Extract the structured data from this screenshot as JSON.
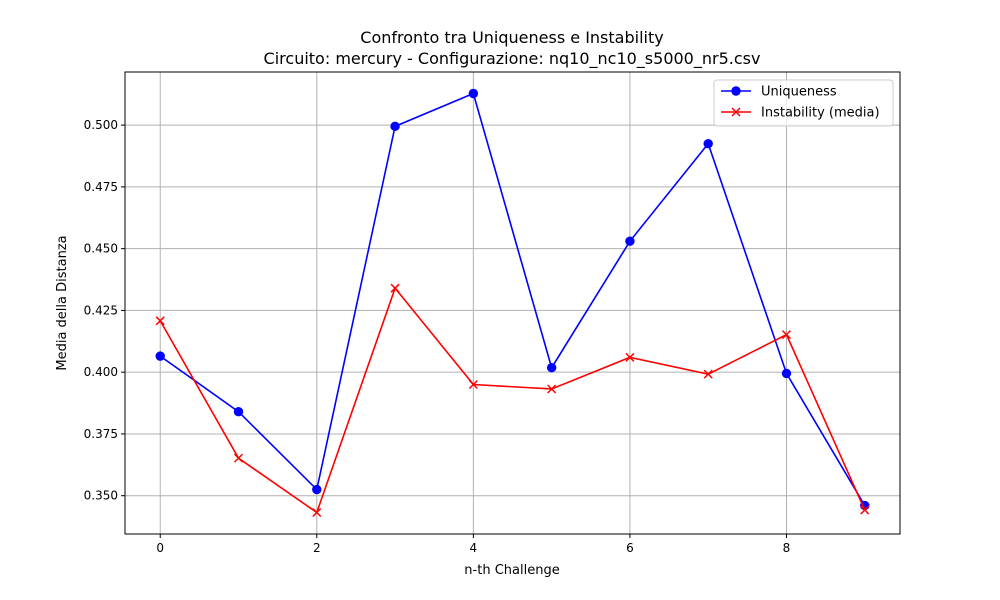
{
  "chart_data": {
    "type": "line",
    "title": "Confronto tra Uniqueness e Instability",
    "subtitle": "Circuito: mercury - Configurazione: nq10_nc10_s5000_nr5.csv",
    "xlabel": "n-th Challenge",
    "ylabel": "Media della Distanza",
    "x": [
      0,
      1,
      2,
      3,
      4,
      5,
      6,
      7,
      8,
      9
    ],
    "xlim": [
      -0.45,
      9.45
    ],
    "ylim": [
      0.3345,
      0.5215
    ],
    "xticks": [
      0,
      2,
      4,
      6,
      8
    ],
    "xtick_labels": [
      "0",
      "2",
      "4",
      "6",
      "8"
    ],
    "yticks": [
      0.35,
      0.375,
      0.4,
      0.425,
      0.45,
      0.475,
      0.5
    ],
    "ytick_labels": [
      "0.350",
      "0.375",
      "0.400",
      "0.425",
      "0.450",
      "0.475",
      "0.500"
    ],
    "grid": true,
    "legend_position": "top-right",
    "series": [
      {
        "name": "Uniqueness",
        "color": "#0000ff",
        "marker": "circle",
        "values": [
          0.4065,
          0.384,
          0.3525,
          0.4995,
          0.5128,
          0.4018,
          0.453,
          0.4925,
          0.3995,
          0.346
        ]
      },
      {
        "name": "Instability (media)",
        "color": "#ff0000",
        "marker": "x",
        "values": [
          0.4208,
          0.3652,
          0.3432,
          0.434,
          0.395,
          0.3932,
          0.406,
          0.3992,
          0.4152,
          0.3442
        ]
      }
    ]
  }
}
